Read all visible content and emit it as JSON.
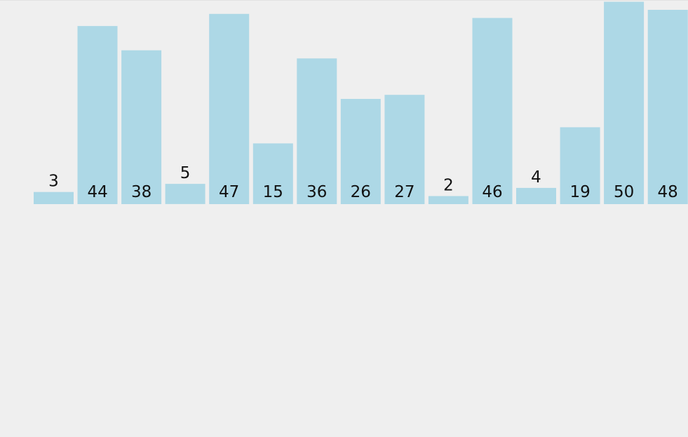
{
  "chart_data": {
    "type": "bar",
    "values": [
      3,
      44,
      38,
      5,
      47,
      15,
      36,
      26,
      27,
      2,
      46,
      4,
      19,
      50,
      48
    ],
    "title": "",
    "xlabel": "",
    "ylabel": "",
    "ylim": [
      0,
      50
    ],
    "grid": false,
    "legend": "none"
  },
  "colors": {
    "background": "#efefef",
    "bar": "#add8e6",
    "label": "#111111"
  }
}
